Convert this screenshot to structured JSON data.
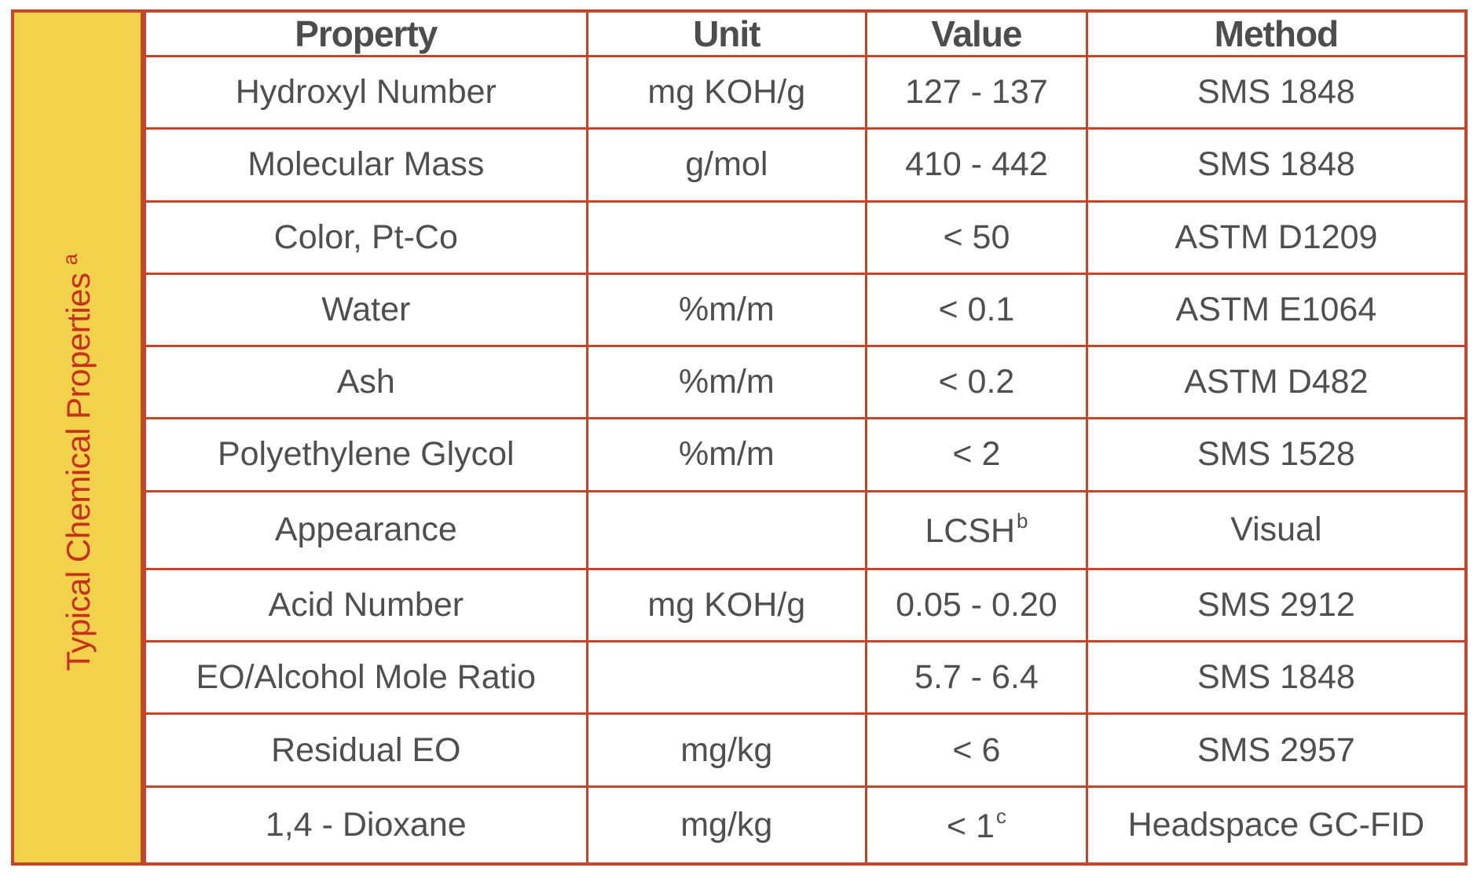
{
  "side_label": "Typical Chemical Properties",
  "side_label_sup": "a",
  "columns": {
    "property": "Property",
    "unit": "Unit",
    "value": "Value",
    "method": "Method"
  },
  "rows": [
    {
      "property": "Hydroxyl Number",
      "unit": "mg KOH/g",
      "value": "127 - 137",
      "value_sup": "",
      "method": "SMS 1848"
    },
    {
      "property": "Molecular Mass",
      "unit": "g/mol",
      "value": "410 - 442",
      "value_sup": "",
      "method": "SMS 1848"
    },
    {
      "property": "Color, Pt-Co",
      "unit": "",
      "value": "< 50",
      "value_sup": "",
      "method": "ASTM D1209"
    },
    {
      "property": "Water",
      "unit": "%m/m",
      "value": "< 0.1",
      "value_sup": "",
      "method": "ASTM  E1064"
    },
    {
      "property": "Ash",
      "unit": "%m/m",
      "value": "< 0.2",
      "value_sup": "",
      "method": "ASTM  D482"
    },
    {
      "property": "Polyethylene Glycol",
      "unit": "%m/m",
      "value": "< 2",
      "value_sup": "",
      "method": "SMS 1528"
    },
    {
      "property": "Appearance",
      "unit": "",
      "value": "LCSH",
      "value_sup": "b",
      "method": "Visual"
    },
    {
      "property": "Acid Number",
      "unit": "mg KOH/g",
      "value": "0.05 - 0.20",
      "value_sup": "",
      "method": "SMS 2912"
    },
    {
      "property": "EO/Alcohol Mole Ratio",
      "unit": "",
      "value": "5.7 - 6.4",
      "value_sup": "",
      "method": "SMS 1848"
    },
    {
      "property": "Residual EO",
      "unit": "mg/kg",
      "value": "< 6",
      "value_sup": "",
      "method": "SMS 2957"
    },
    {
      "property": "1,4 - Dioxane",
      "unit": "mg/kg",
      "value": "< 1",
      "value_sup": "c",
      "method": "Headspace GC-FID"
    }
  ],
  "colors": {
    "border": "#c4462a",
    "side_background": "#f2d24b",
    "side_text": "#c7301d",
    "cell_text": "#4f4f4f"
  }
}
